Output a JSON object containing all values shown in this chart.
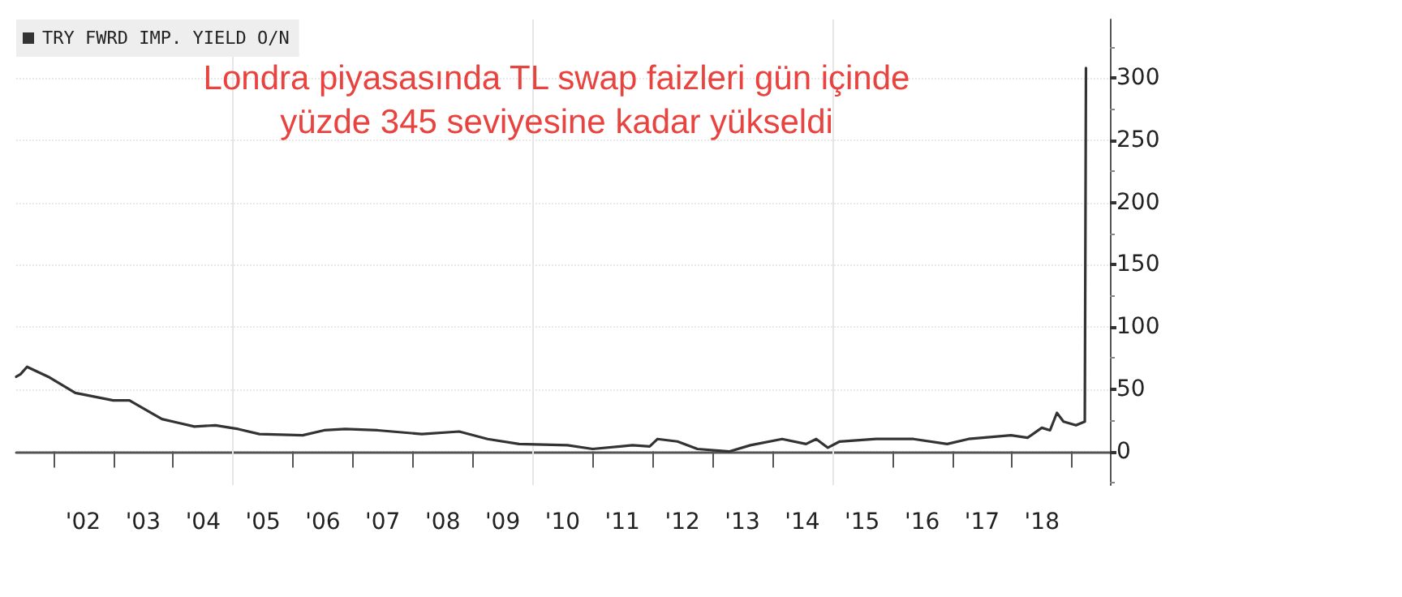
{
  "chart_data": {
    "type": "line",
    "title": "Londra piyasasında TL swap faizleri gün içinde\nyüzde 345 seviyesine kadar yükseldi",
    "x": [
      "2001-05-20",
      "2001-06-15",
      "2001-07-25",
      "2001-12-01",
      "2002-05-15",
      "2003-01-01",
      "2003-04-10",
      "2003-10-25",
      "2004-02-01",
      "2004-05-10",
      "2004-09-15",
      "2005-02-01",
      "2005-06-10",
      "2006-03-01",
      "2006-07-10",
      "2006-11-15",
      "2007-06-01",
      "2008-02-25",
      "2008-10-10",
      "2009-04-01",
      "2009-10-10",
      "2010-08-01",
      "2011-01-01",
      "2011-09-01",
      "2011-12-15",
      "2012-02-01",
      "2012-06-01",
      "2012-10-01",
      "2013-04-15",
      "2013-08-20",
      "2014-03-01",
      "2014-07-25",
      "2014-09-25",
      "2014-12-05",
      "2015-02-15",
      "2015-09-25",
      "2016-05-10",
      "2016-12-01",
      "2017-04-10",
      "2017-12-25",
      "2018-04-05",
      "2018-07-01",
      "2018-08-20",
      "2018-10-01",
      "2018-11-10",
      "2019-01-25",
      "2019-03-20",
      "2019-03-27"
    ],
    "series": [
      {
        "name": "TRY FWRD IMP. YIELD O/N",
        "color": "#333333",
        "values": [
          60,
          62,
          68,
          60,
          47,
          41,
          41,
          26,
          23,
          20,
          21,
          18,
          14,
          13,
          17,
          18,
          17,
          14,
          16,
          10,
          6,
          5,
          2,
          5,
          4,
          10,
          8,
          2,
          0,
          5,
          10,
          6,
          10,
          3,
          8,
          10,
          10,
          6,
          10,
          13,
          11,
          19,
          17,
          31,
          24,
          21,
          24,
          308
        ]
      }
    ],
    "xlim": [
      "2001-05-20",
      "2019-08-20"
    ],
    "xticks": [
      {
        "value": "2002-01-01",
        "label": null
      },
      {
        "value": "2002-07-02",
        "label": "'02"
      },
      {
        "value": "2003-01-01",
        "label": null
      },
      {
        "value": "2003-07-02",
        "label": "'03"
      },
      {
        "value": "2004-01-01",
        "label": null
      },
      {
        "value": "2004-07-02",
        "label": "'04"
      },
      {
        "value": "2005-01-01",
        "label": null
      },
      {
        "value": "2005-07-02",
        "label": "'05"
      },
      {
        "value": "2006-01-01",
        "label": null
      },
      {
        "value": "2006-07-02",
        "label": "'06"
      },
      {
        "value": "2007-01-01",
        "label": null
      },
      {
        "value": "2007-07-02",
        "label": "'07"
      },
      {
        "value": "2008-01-01",
        "label": null
      },
      {
        "value": "2008-07-02",
        "label": "'08"
      },
      {
        "value": "2009-01-01",
        "label": null
      },
      {
        "value": "2009-07-02",
        "label": "'09"
      },
      {
        "value": "2010-01-01",
        "label": null
      },
      {
        "value": "2010-07-02",
        "label": "'10"
      },
      {
        "value": "2011-01-01",
        "label": null
      },
      {
        "value": "2011-07-02",
        "label": "'11"
      },
      {
        "value": "2012-01-01",
        "label": null
      },
      {
        "value": "2012-07-02",
        "label": "'12"
      },
      {
        "value": "2013-01-01",
        "label": null
      },
      {
        "value": "2013-07-02",
        "label": "'13"
      },
      {
        "value": "2014-01-01",
        "label": null
      },
      {
        "value": "2014-07-02",
        "label": "'14"
      },
      {
        "value": "2015-01-01",
        "label": null
      },
      {
        "value": "2015-07-02",
        "label": "'15"
      },
      {
        "value": "2016-01-01",
        "label": null
      },
      {
        "value": "2016-07-02",
        "label": "'16"
      },
      {
        "value": "2017-01-01",
        "label": null
      },
      {
        "value": "2017-07-02",
        "label": "'17"
      },
      {
        "value": "2018-01-01",
        "label": null
      },
      {
        "value": "2018-07-02",
        "label": "'18"
      },
      {
        "value": "2019-01-01",
        "label": null
      }
    ],
    "ylim": [
      -27,
      347
    ],
    "yticks": [
      {
        "value": -25,
        "label": null
      },
      0,
      {
        "value": 25,
        "label": null
      },
      50,
      {
        "value": 75,
        "label": null
      },
      100,
      {
        "value": 125,
        "label": null
      },
      150,
      {
        "value": 175,
        "label": null
      },
      200,
      {
        "value": 225,
        "label": null
      },
      250,
      {
        "value": 275,
        "label": null
      },
      300,
      {
        "value": 325,
        "label": null
      }
    ],
    "ref_lines": [
      {
        "axis": "x",
        "value": "2005-01-01",
        "color": "#e6e6e6"
      },
      {
        "axis": "x",
        "value": "2010-01-01",
        "color": "#e6e6e6"
      },
      {
        "axis": "x",
        "value": "2015-01-01",
        "color": "#e6e6e6"
      }
    ],
    "grid": "y",
    "legend": "top left",
    "marker": "none",
    "line_style": "solid"
  }
}
